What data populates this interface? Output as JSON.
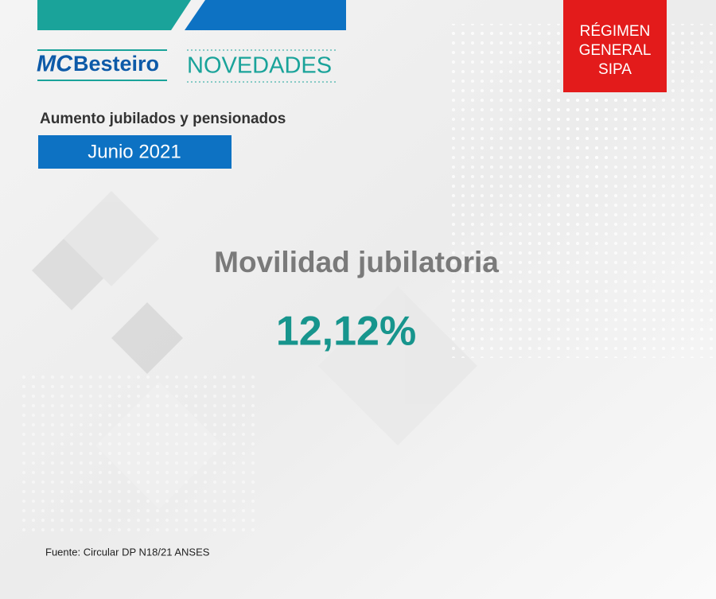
{
  "header": {
    "logo": {
      "prefix": "MC",
      "name": "Besteiro"
    },
    "section": "NOVEDADES",
    "subtitle": "Aumento jubilados y pensionados",
    "period": "Junio 2021",
    "badge": [
      "RÉGIMEN",
      "GENERAL",
      "SIPA"
    ]
  },
  "main": {
    "title": "Movilidad jubilatoria",
    "value": "12,12%"
  },
  "footer": {
    "source": "Fuente: Circular DP N18/21 ANSES"
  }
}
